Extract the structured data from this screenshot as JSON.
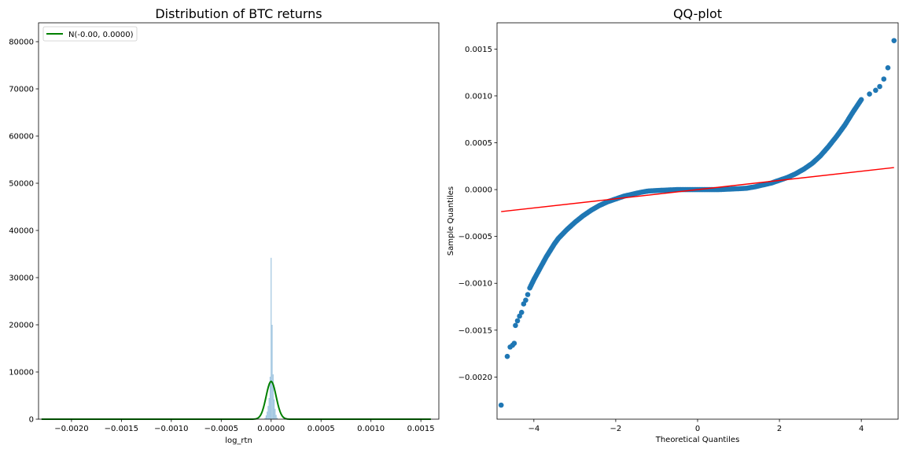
{
  "chart_data": [
    {
      "type": "histogram",
      "title": "Distribution of BTC returns",
      "xlabel": "log_rtn",
      "ylabel": "",
      "xlim": [
        -0.00233,
        0.00168
      ],
      "ylim": [
        0,
        84000
      ],
      "xticks": [
        -0.002,
        -0.0015,
        -0.001,
        -0.0005,
        0.0,
        0.0005,
        0.001,
        0.0015
      ],
      "xtick_labels": [
        "−0.0020",
        "−0.0015",
        "−0.0010",
        "−0.0005",
        "0.0000",
        "0.0005",
        "0.0010",
        "0.0015"
      ],
      "yticks": [
        0,
        10000,
        20000,
        30000,
        40000,
        50000,
        60000,
        70000,
        80000
      ],
      "ytick_labels": [
        "0",
        "10000",
        "20000",
        "30000",
        "40000",
        "50000",
        "60000",
        "70000",
        "80000"
      ],
      "histogram": {
        "color": "#9fc5e0",
        "bins_x": [
          -6e-05,
          -5e-05,
          -4e-05,
          -3e-05,
          -2e-05,
          -1e-05,
          0.0,
          1e-05,
          2e-05,
          3e-05,
          4e-05,
          5e-05,
          6e-05
        ],
        "density": [
          300,
          800,
          1600,
          2800,
          4500,
          9000,
          34200,
          20000,
          9500,
          4200,
          2200,
          900,
          300
        ]
      },
      "series": [
        {
          "name": "N(-0.00, 0.0000)",
          "kind": "normal_pdf",
          "color": "#008000",
          "mean": 0.0,
          "peak": 8000,
          "std": 5e-05,
          "x_range": [
            -0.0023,
            0.0016
          ]
        }
      ],
      "legend": {
        "position": "top-left",
        "entries": [
          "N(-0.00, 0.0000)"
        ]
      }
    },
    {
      "type": "scatter",
      "title": "QQ-plot",
      "xlabel": "Theoretical Quantiles",
      "ylabel": "Sample Quantiles",
      "xlim": [
        -4.9,
        4.9
      ],
      "ylim": [
        -0.00245,
        0.00178
      ],
      "xticks": [
        -4,
        -2,
        0,
        2,
        4
      ],
      "xtick_labels": [
        "−4",
        "−2",
        "0",
        "2",
        "4"
      ],
      "yticks": [
        -0.002,
        -0.0015,
        -0.001,
        -0.0005,
        0.0,
        0.0005,
        0.001,
        0.0015
      ],
      "ytick_labels": [
        "−0.0020",
        "−0.0015",
        "−0.0010",
        "−0.0005",
        "0.0000",
        "0.0005",
        "0.0010",
        "0.0015"
      ],
      "point_color": "#1f77b4",
      "line_color": "#ff0000",
      "reference_line": {
        "x": [
          -4.8,
          4.8
        ],
        "y": [
          -0.000235,
          0.000235
        ]
      },
      "points": [
        [
          -4.8,
          -0.0023
        ],
        [
          -4.65,
          -0.00178
        ],
        [
          -4.58,
          -0.00168
        ],
        [
          -4.52,
          -0.00166
        ],
        [
          -4.48,
          -0.00164
        ],
        [
          -4.45,
          -0.00145
        ],
        [
          -4.4,
          -0.0014
        ],
        [
          -4.35,
          -0.00135
        ],
        [
          -4.3,
          -0.00131
        ],
        [
          -4.25,
          -0.00122
        ],
        [
          -4.2,
          -0.00118
        ],
        [
          -4.15,
          -0.00112
        ],
        [
          -4.1,
          -0.00105
        ],
        [
          -4.0,
          -0.00096
        ],
        [
          -3.9,
          -0.00088
        ],
        [
          -3.8,
          -0.0008
        ],
        [
          -3.7,
          -0.00072
        ],
        [
          -3.6,
          -0.00065
        ],
        [
          -3.5,
          -0.00058
        ],
        [
          -3.4,
          -0.00052
        ],
        [
          -3.2,
          -0.00043
        ],
        [
          -3.0,
          -0.00035
        ],
        [
          -2.8,
          -0.00028
        ],
        [
          -2.6,
          -0.00022
        ],
        [
          -2.4,
          -0.00017
        ],
        [
          -2.2,
          -0.00013
        ],
        [
          -2.0,
          -0.0001
        ],
        [
          -1.8,
          -7e-05
        ],
        [
          -1.6,
          -5e-05
        ],
        [
          -1.4,
          -3e-05
        ],
        [
          -1.2,
          -1.5e-05
        ],
        [
          -1.0,
          -1e-05
        ],
        [
          -0.5,
          0.0
        ],
        [
          0.0,
          0.0
        ],
        [
          0.5,
          0.0
        ],
        [
          1.0,
          1e-05
        ],
        [
          1.2,
          1.5e-05
        ],
        [
          1.4,
          3e-05
        ],
        [
          1.6,
          5e-05
        ],
        [
          1.8,
          7e-05
        ],
        [
          2.0,
          0.0001
        ],
        [
          2.2,
          0.00013
        ],
        [
          2.4,
          0.00017
        ],
        [
          2.6,
          0.00022
        ],
        [
          2.8,
          0.00028
        ],
        [
          3.0,
          0.00036
        ],
        [
          3.2,
          0.00046
        ],
        [
          3.4,
          0.00057
        ],
        [
          3.6,
          0.00069
        ],
        [
          3.8,
          0.00083
        ],
        [
          4.0,
          0.00096
        ],
        [
          4.2,
          0.00102
        ],
        [
          4.35,
          0.00106
        ],
        [
          4.45,
          0.0011
        ],
        [
          4.55,
          0.00118
        ],
        [
          4.65,
          0.0013
        ],
        [
          4.8,
          0.00159
        ]
      ]
    }
  ]
}
